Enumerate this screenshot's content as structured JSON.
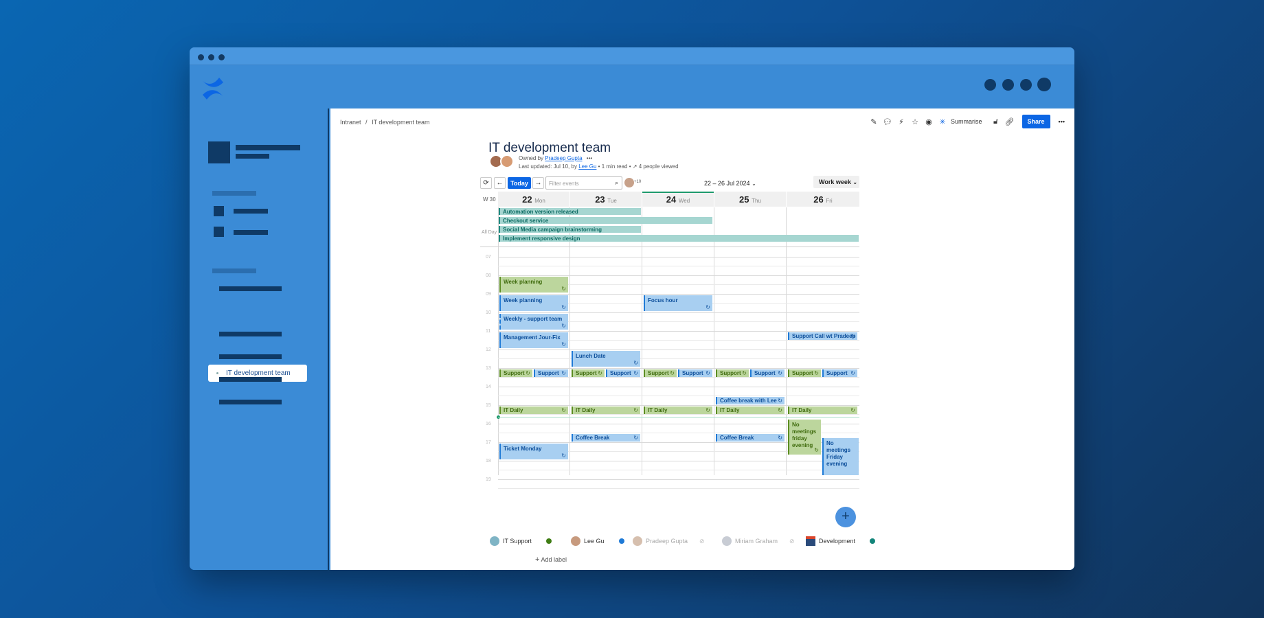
{
  "window": {
    "title": ""
  },
  "sidebar": {
    "active_item": "IT development team"
  },
  "breadcrumb": {
    "root": "Intranet",
    "separator": "/",
    "current": "IT development team"
  },
  "toolbar": {
    "summarise_label": "Summarise",
    "share_label": "Share",
    "more": "•••"
  },
  "page": {
    "title": "IT development team",
    "owned_prefix": "Owned by",
    "owner": "Pradeep Gupta",
    "owner_more": "•••",
    "updated_prefix": "Last updated: Jul 10, by",
    "updated_by": "Lee Gu",
    "read_time": "1 min read",
    "views": "4 people viewed"
  },
  "calendar": {
    "today_label": "Today",
    "filter_placeholder": "Filter events",
    "participants_more": "+10",
    "range_label": "22 – 26 Jul 2024",
    "view_label": "Work week",
    "week_label": "W 30",
    "allday_label": "All Day",
    "days": [
      {
        "num": "22",
        "name": "Mon"
      },
      {
        "num": "23",
        "name": "Tue"
      },
      {
        "num": "24",
        "name": "Wed"
      },
      {
        "num": "25",
        "name": "Thu"
      },
      {
        "num": "26",
        "name": "Fri"
      }
    ],
    "hours": [
      "07",
      "08",
      "09",
      "10",
      "11",
      "12",
      "13",
      "14",
      "15",
      "16",
      "17",
      "18",
      "19"
    ],
    "allday_events": [
      "Automation version released",
      "Checkout service",
      "Social Media campaign brainstorming",
      "Implement responsive design"
    ],
    "events": {
      "week_planning_1": "Week planning",
      "week_planning_2": "Week planning",
      "weekly_support": "Weekly - support team",
      "management": "Management Jour-Fix",
      "focus_hour": "Focus hour",
      "support_call": "Support Call wt Pradeep",
      "lunch_date": "Lunch Date",
      "support": "Support",
      "coffee_lee": "Coffee break with Lee",
      "it_daily": "IT Daily",
      "coffee_break": "Coffee Break",
      "ticket_monday": "Ticket Monday",
      "no_meetings_1": "No meetings friday evening",
      "no_meetings_2": "No meetings Friday evening"
    },
    "recurring_icon": "↻",
    "add_icon": "+",
    "legend": [
      {
        "name": "IT Support",
        "color": "#3f7d14"
      },
      {
        "name": "Lee Gu",
        "color": "#1f7ad6"
      },
      {
        "name": "Pradeep Gupta",
        "color": "#bbbbbb"
      },
      {
        "name": "Miriam Graham",
        "color": "#bbbbbb"
      },
      {
        "name": "Development",
        "color": "#13857a"
      }
    ],
    "add_label": "Add label"
  }
}
